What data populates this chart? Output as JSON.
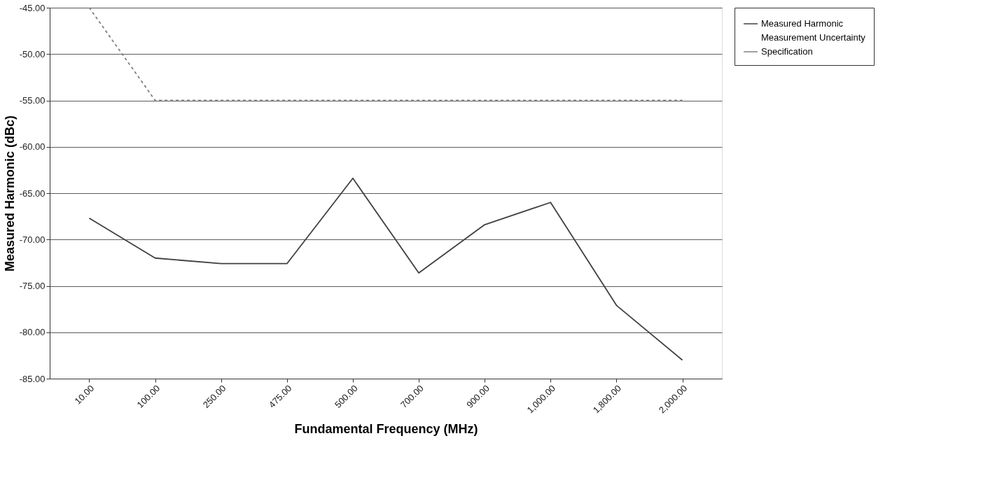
{
  "chart_data": {
    "type": "line",
    "xlabel": "Fundamental Frequency (MHz)",
    "ylabel": "Measured Harmonic (dBc)",
    "categories": [
      "10.00",
      "100.00",
      "250.00",
      "475.00",
      "500.00",
      "700.00",
      "900.00",
      "1,000.00",
      "1,800.00",
      "2,000.00"
    ],
    "series": [
      {
        "name": "Measured Harmonic",
        "color": "#404040",
        "line_style": "solid",
        "values": [
          -67.7,
          -72.0,
          -72.6,
          -72.6,
          -63.4,
          -73.6,
          -68.4,
          -66.0,
          -77.1,
          -83.0
        ]
      },
      {
        "name": "Measurement Uncertainty",
        "values": [
          null,
          null,
          null,
          null,
          null,
          null,
          null,
          null,
          null,
          null
        ]
      },
      {
        "name": "Specification",
        "color": "#808080",
        "line_style": "dashed",
        "values": [
          -45,
          -55,
          -55,
          -55,
          -55,
          -55,
          -55,
          -55,
          -55,
          -55
        ]
      }
    ],
    "ylim": [
      -85,
      -45
    ],
    "yticks": [
      {
        "value": -85,
        "label": "-85.00"
      },
      {
        "value": -80,
        "label": "-80.00"
      },
      {
        "value": -75,
        "label": "-75.00"
      },
      {
        "value": -70,
        "label": "-70.00"
      },
      {
        "value": -65,
        "label": "-65.00"
      },
      {
        "value": -60,
        "label": "-60.00"
      },
      {
        "value": -55,
        "label": "-55.00"
      },
      {
        "value": -50,
        "label": "-50.00"
      },
      {
        "value": -45,
        "label": "-45.00"
      }
    ],
    "grid": "y",
    "legend": "right",
    "marker": "none"
  }
}
